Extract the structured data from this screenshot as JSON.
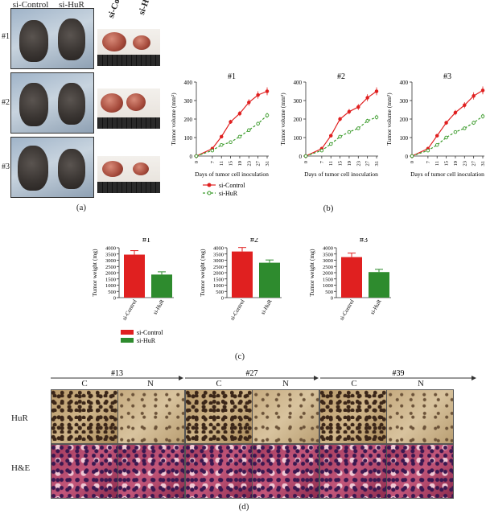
{
  "panel_labels": {
    "a": "(a)",
    "b": "(b)",
    "c": "(c)",
    "d": "(d)"
  },
  "panel_a": {
    "column_headers": [
      "si-Control",
      "si-HuR"
    ],
    "row_labels": [
      "#1",
      "#2",
      "#3"
    ],
    "tumor_headers": [
      "si-Control",
      "si-HuR"
    ]
  },
  "panel_b_legend": [
    "si-Control",
    "si-HuR"
  ],
  "panel_c_legend": [
    "si-Control",
    "si-HuR"
  ],
  "panel_d": {
    "cases": [
      "#13",
      "#27",
      "#39"
    ],
    "column_labels": [
      "C",
      "N"
    ],
    "row_labels": [
      "HuR",
      "H&E"
    ]
  },
  "colors": {
    "control": "#e02020",
    "hur_line": "#3a9a2a",
    "hur_bar": "#2e8b2e"
  },
  "chart_data": [
    {
      "type": "line",
      "title": "#1",
      "xlabel": "Days of tumor cell inoculation",
      "ylabel": "Tumor volume (mm³)",
      "x": [
        0,
        7,
        11,
        15,
        19,
        23,
        27,
        31
      ],
      "ylim": [
        0,
        400
      ],
      "yticks": [
        0,
        100,
        200,
        300,
        400
      ],
      "series": [
        {
          "name": "si-Control",
          "values": [
            0,
            40,
            105,
            185,
            230,
            290,
            330,
            350
          ]
        },
        {
          "name": "si-HuR",
          "values": [
            0,
            30,
            60,
            75,
            105,
            140,
            175,
            220
          ]
        }
      ]
    },
    {
      "type": "line",
      "title": "#2",
      "xlabel": "Days of tumor cell inoculation",
      "ylabel": "Tumor volume (mm³)",
      "x": [
        0,
        7,
        11,
        15,
        19,
        23,
        27,
        31
      ],
      "ylim": [
        0,
        400
      ],
      "yticks": [
        0,
        100,
        200,
        300,
        400
      ],
      "series": [
        {
          "name": "si-Control",
          "values": [
            0,
            40,
            110,
            200,
            240,
            265,
            315,
            350
          ]
        },
        {
          "name": "si-HuR",
          "values": [
            0,
            30,
            65,
            105,
            130,
            150,
            190,
            210
          ]
        }
      ]
    },
    {
      "type": "line",
      "title": "#3",
      "xlabel": "Days of tumor cell inoculation",
      "ylabel": "Tumor volume (mm³)",
      "x": [
        0,
        7,
        11,
        15,
        19,
        23,
        27,
        31
      ],
      "ylim": [
        0,
        400
      ],
      "yticks": [
        0,
        100,
        200,
        300,
        400
      ],
      "series": [
        {
          "name": "si-Control",
          "values": [
            0,
            40,
            110,
            180,
            235,
            275,
            325,
            355
          ]
        },
        {
          "name": "si-HuR",
          "values": [
            0,
            30,
            60,
            100,
            130,
            150,
            180,
            215
          ]
        }
      ]
    },
    {
      "type": "bar",
      "title": "#1",
      "ylabel": "Tumor weight (mg)",
      "categories": [
        "si-Control",
        "si-HuR"
      ],
      "values": [
        3450,
        1850
      ],
      "ylim": [
        0,
        4000
      ],
      "yticks": [
        0,
        500,
        1000,
        1500,
        2000,
        2500,
        3000,
        3500,
        4000
      ]
    },
    {
      "type": "bar",
      "title": "#2",
      "ylabel": "Tumor weight (mg)",
      "categories": [
        "si-Control",
        "si-HuR"
      ],
      "values": [
        3700,
        2800
      ],
      "ylim": [
        0,
        4000
      ],
      "yticks": [
        0,
        500,
        1000,
        1500,
        2000,
        2500,
        3000,
        3500,
        4000
      ]
    },
    {
      "type": "bar",
      "title": "#3",
      "ylabel": "Tumor weight (mg)",
      "categories": [
        "si-Control",
        "si-HuR"
      ],
      "values": [
        3250,
        2050
      ],
      "ylim": [
        0,
        4000
      ],
      "yticks": [
        0,
        500,
        1000,
        1500,
        2000,
        2500,
        3000,
        3500,
        4000
      ]
    }
  ]
}
